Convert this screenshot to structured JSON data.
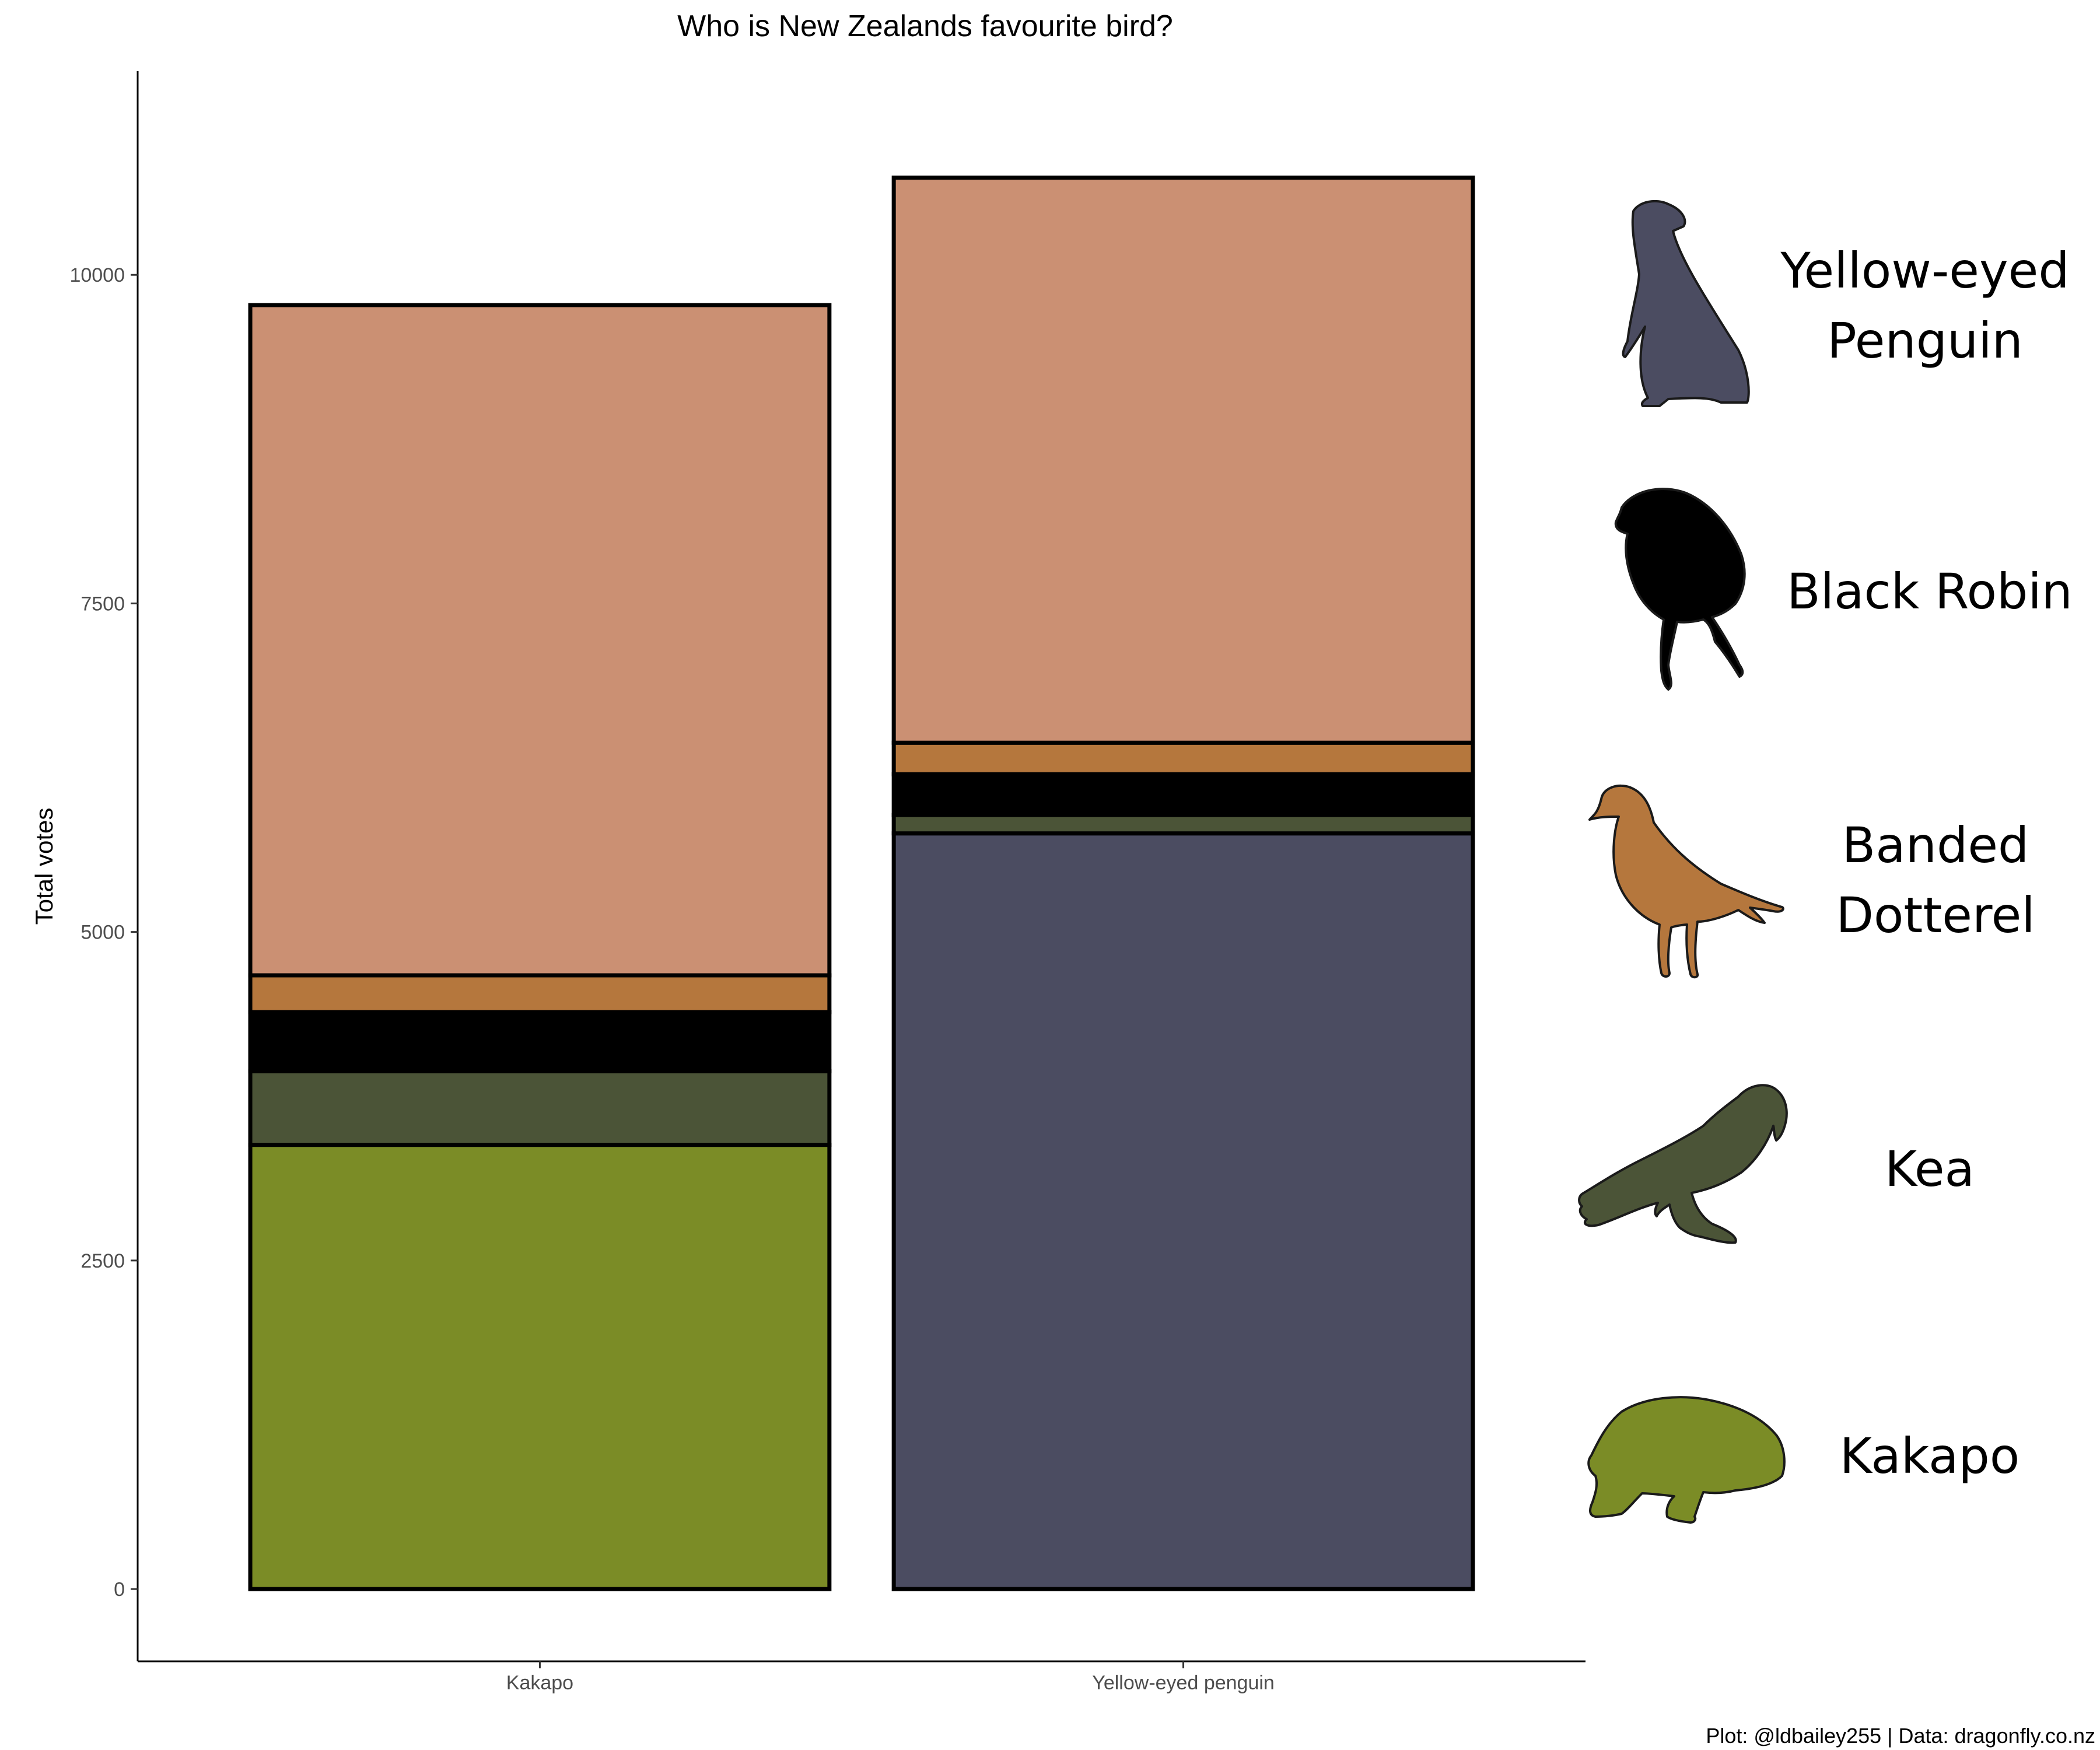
{
  "chart_data": {
    "type": "bar",
    "stacked": true,
    "title": "Who is New Zealands favourite bird?",
    "xlabel": "",
    "ylabel": "Total votes",
    "ylim": [
      -550,
      11550
    ],
    "yticks": [
      0,
      2500,
      5000,
      7500,
      10000
    ],
    "categories": [
      "Kakapo",
      "Yellow-eyed penguin"
    ],
    "series": [
      {
        "key": "kakapo",
        "values": [
          3380,
          0
        ],
        "color": "#7b8c26"
      },
      {
        "key": "penguin",
        "values": [
          0,
          5750
        ],
        "color": "#4b4c61"
      },
      {
        "key": "kea",
        "values": [
          560,
          140
        ],
        "color": "#4b5437"
      },
      {
        "key": "robin",
        "values": [
          450,
          310
        ],
        "color": "#000000"
      },
      {
        "key": "dotterel",
        "values": [
          280,
          240
        ],
        "color": "#b5773d"
      },
      {
        "key": "other",
        "values": [
          5100,
          4300
        ],
        "color": "#cb9073"
      }
    ],
    "legend": {
      "placement": "right",
      "items": [
        {
          "key": "penguin",
          "lines": [
            "Yellow-eyed",
            "Penguin"
          ],
          "icon": "penguin-silhouette-icon",
          "color": "#4b4c61"
        },
        {
          "key": "robin",
          "lines": [
            "Black Robin"
          ],
          "icon": "robin-silhouette-icon",
          "color": "#000000"
        },
        {
          "key": "dotterel",
          "lines": [
            "Banded",
            "Dotterel"
          ],
          "icon": "dotterel-silhouette-icon",
          "color": "#b5773d"
        },
        {
          "key": "kea",
          "lines": [
            "Kea"
          ],
          "icon": "kea-silhouette-icon",
          "color": "#4b5437"
        },
        {
          "key": "kakapo",
          "lines": [
            "Kakapo"
          ],
          "icon": "kakapo-silhouette-icon",
          "color": "#7b8c26"
        }
      ]
    },
    "grid": false,
    "caption": "Plot: @ldbailey255 | Data: dragonfly.co.nz"
  }
}
